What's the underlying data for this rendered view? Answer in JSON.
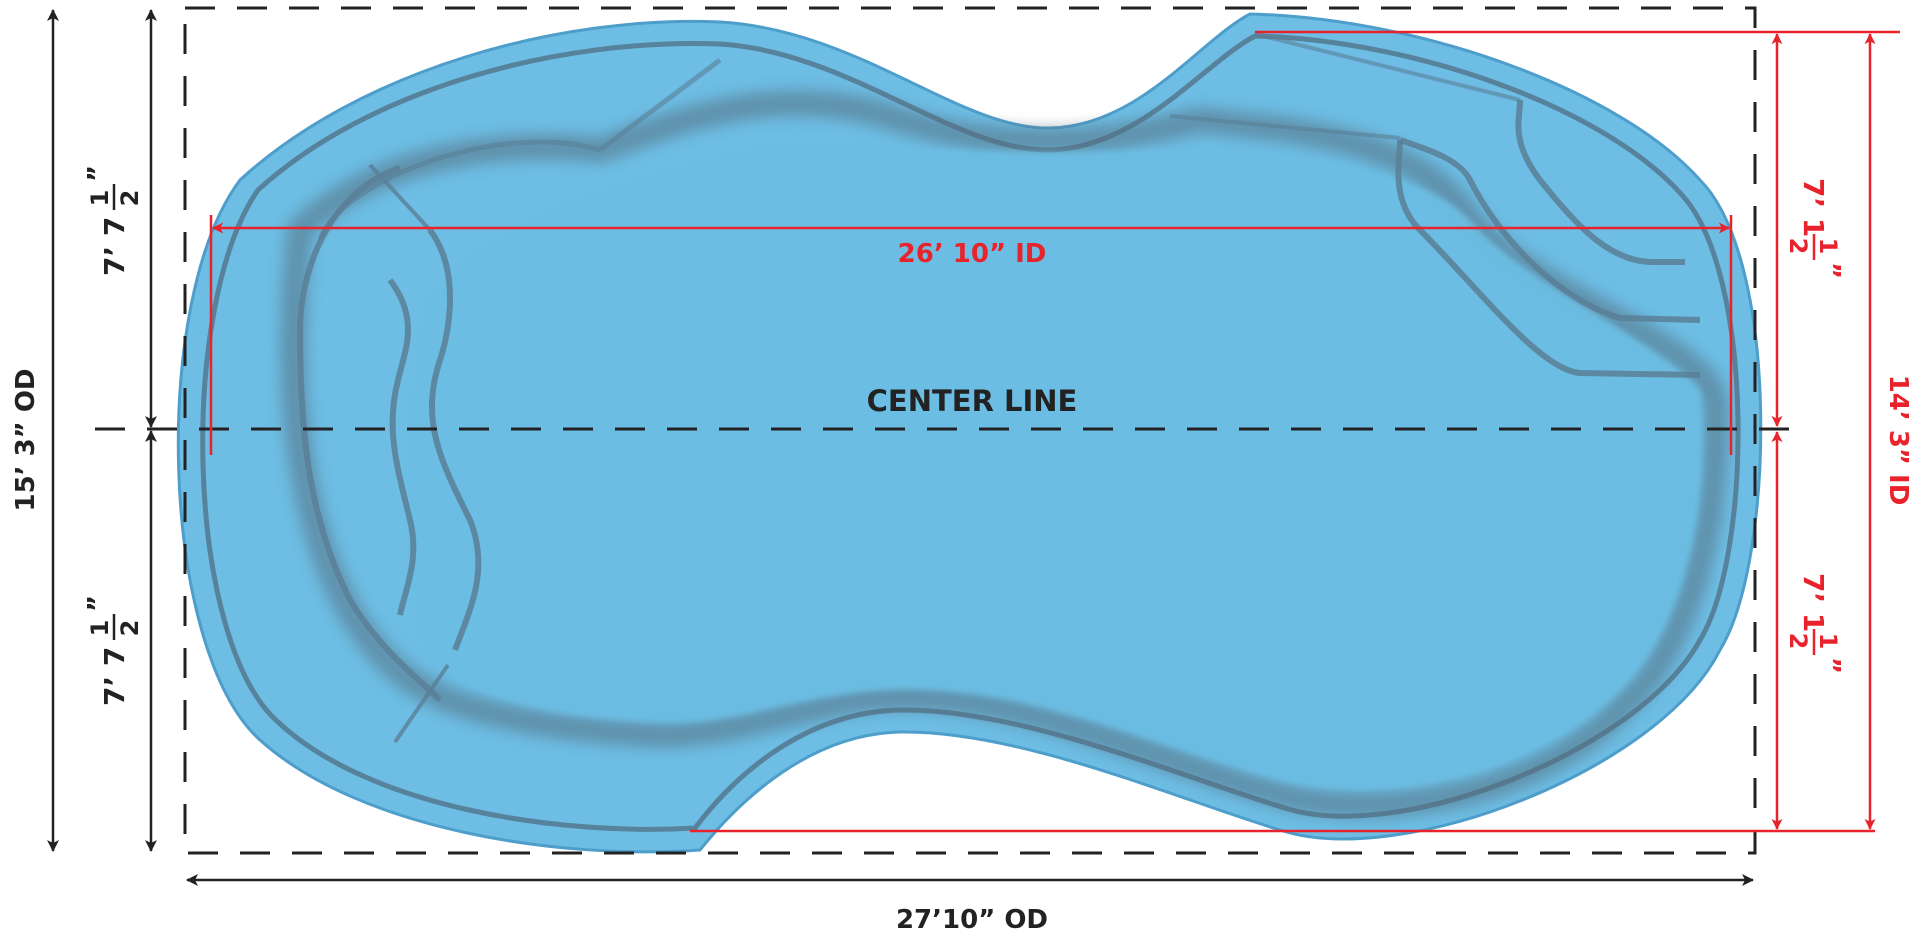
{
  "colors": {
    "pool_fill": "#6dbde4",
    "pool_edge": "#4e9ecb",
    "pool_shadow": "#5b7d93",
    "dimension_black": "#222222",
    "dimension_red": "#e8232b"
  },
  "labels": {
    "inner_length": "26’ 10” ID",
    "center_line": "CENTER LINE",
    "outer_length": "27’10” OD",
    "outer_width": "15’ 3” OD",
    "inner_width": "14’ 3” ID"
  },
  "fractions": {
    "left_upper": {
      "whole": "7’ 7",
      "numerator": "1",
      "denominator": "2",
      "unit": "”"
    },
    "left_lower": {
      "whole": "7’ 7",
      "numerator": "1",
      "denominator": "2",
      "unit": "”"
    },
    "right_upper": {
      "whole": "7’ 1",
      "numerator": "1",
      "denominator": "2",
      "unit": "”"
    },
    "right_lower": {
      "whole": "7’ 1",
      "numerator": "1",
      "denominator": "2",
      "unit": "”"
    }
  }
}
